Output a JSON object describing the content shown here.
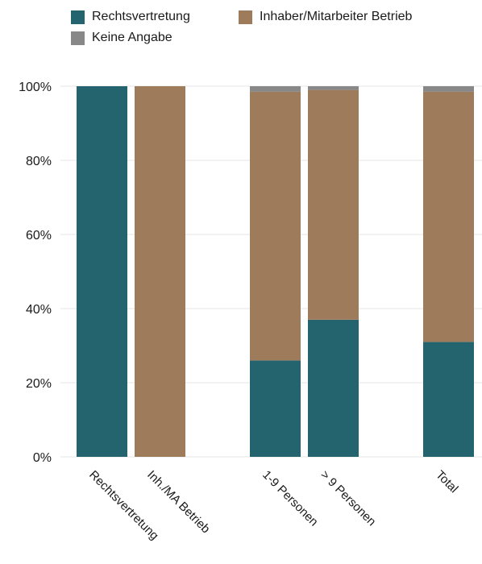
{
  "chart_data": {
    "type": "bar",
    "stacked": true,
    "categories": [
      "Rechtsvertretung",
      "Inh./MA Betrieb",
      "1-9 Personen",
      "> 9 Personen",
      "Total"
    ],
    "series": [
      {
        "name": "Rechtsvertretung",
        "color": "#24646e",
        "values": [
          100,
          0,
          26,
          37,
          31
        ]
      },
      {
        "name": "Inhaber/Mitarbeiter Betrieb",
        "color": "#9e7b5a",
        "values": [
          0,
          100,
          72.5,
          62,
          67.5
        ]
      },
      {
        "name": "Keine Angabe",
        "color": "#888888",
        "values": [
          0,
          0,
          1.5,
          1,
          1.5
        ]
      }
    ],
    "yticks": [
      "0%",
      "20%",
      "40%",
      "60%",
      "80%",
      "100%"
    ],
    "ylim": [
      0,
      100
    ],
    "grid": true,
    "legend_position": "top"
  }
}
